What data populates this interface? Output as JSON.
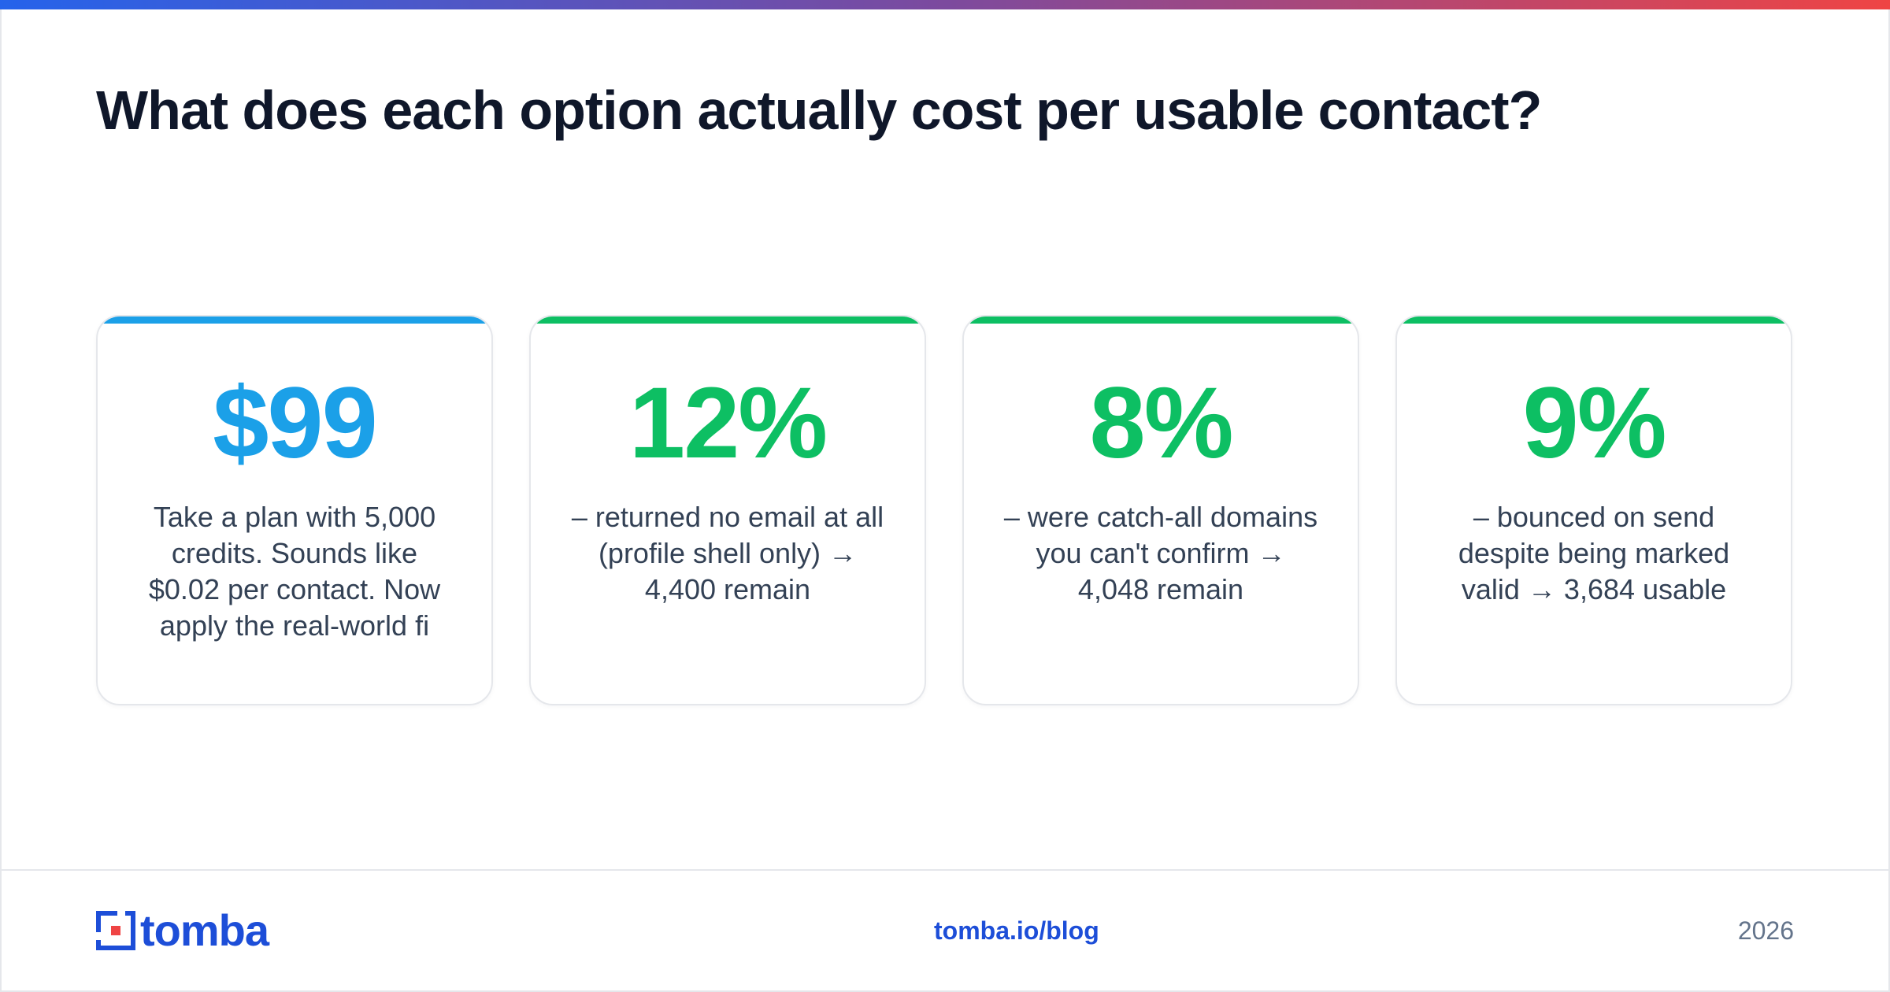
{
  "title": "What does each option actually cost per usable contact?",
  "colors": {
    "blue_accent": "#1ba0e8",
    "green_accent": "#0dbf63",
    "brand_blue": "#1d4ed8",
    "title_text": "#0f172a",
    "body_text": "#334155"
  },
  "cards": [
    {
      "metric": "$99",
      "color": "#1ba0e8",
      "description": "Take a plan with 5,000 credits. Sounds like $0.02 per contact. Now apply the real-world fi"
    },
    {
      "metric": "12%",
      "color": "#0dbf63",
      "description": "– returned no email at all (profile shell only) → 4,400 remain"
    },
    {
      "metric": "8%",
      "color": "#0dbf63",
      "description": "– were catch-all domains you can't confirm → 4,048 remain"
    },
    {
      "metric": "9%",
      "color": "#0dbf63",
      "description": "– bounced on send despite being marked valid → 3,684 usable"
    }
  ],
  "footer": {
    "logo_text": "tomba",
    "link": "tomba.io/blog",
    "year": "2026"
  }
}
